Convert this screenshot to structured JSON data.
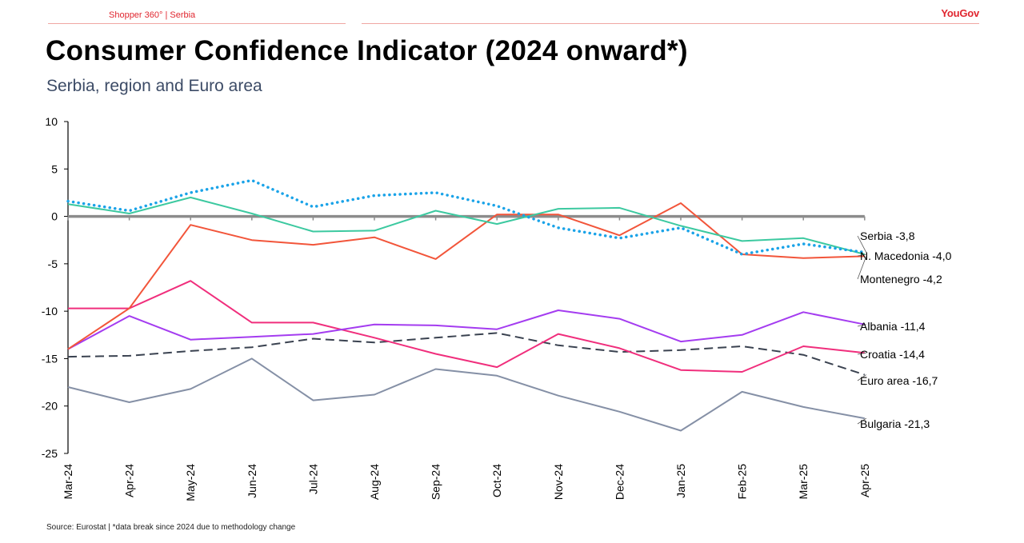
{
  "header": {
    "brand_label": "Shopper 360° | Serbia",
    "logo_text": "YouGov",
    "title": "Consumer Confidence Indicator (2024 onward*)",
    "subtitle": "Serbia, region and Euro area"
  },
  "footer": {
    "source": "Source: Eurostat | *data break since 2024 due to methodology change"
  },
  "colors": {
    "brand": "#e0262f",
    "zero_line": "#8c8c8c"
  },
  "chart_data": {
    "type": "line",
    "title": "Consumer Confidence Indicator (2024 onward*)",
    "subtitle": "Serbia, region and Euro area",
    "xlabel": "",
    "ylabel": "",
    "ylim": [
      -25,
      10
    ],
    "yticks": [
      10,
      5,
      0,
      -5,
      -10,
      -15,
      -20,
      -25
    ],
    "grid": false,
    "categories": [
      "Mar-24",
      "Apr-24",
      "May-24",
      "Jun-24",
      "Jul-24",
      "Aug-24",
      "Sep-24",
      "Oct-24",
      "Nov-24",
      "Dec-24",
      "Jan-25",
      "Feb-25",
      "Mar-25",
      "Apr-25"
    ],
    "series": [
      {
        "name": "Serbia",
        "end_label": "Serbia -3,8",
        "color": "#1aa3e8",
        "style": "dotted",
        "values": [
          1.6,
          0.6,
          2.5,
          3.8,
          1.0,
          2.2,
          2.5,
          1.1,
          -1.2,
          -2.3,
          -1.2,
          -4.0,
          -2.9,
          -3.8
        ]
      },
      {
        "name": "N. Macedonia",
        "end_label": "N. Macedonia -4,0",
        "color": "#3cc9a0",
        "style": "solid",
        "values": [
          1.3,
          0.3,
          2.0,
          0.3,
          -1.6,
          -1.5,
          0.6,
          -0.8,
          0.8,
          0.9,
          -1.0,
          -2.6,
          -2.3,
          -4.0
        ]
      },
      {
        "name": "Montenegro",
        "end_label": "Montenegro -4,2",
        "color": "#f2553a",
        "style": "solid",
        "values": [
          -14.0,
          -9.7,
          -0.9,
          -2.5,
          -3.0,
          -2.2,
          -4.5,
          0.2,
          0.2,
          -2.0,
          1.4,
          -4.0,
          -4.4,
          -4.2
        ]
      },
      {
        "name": "Albania",
        "end_label": "Albania -11,4",
        "color": "#a43cf0",
        "style": "solid",
        "values": [
          -14.0,
          -10.5,
          -13.0,
          -12.7,
          -12.4,
          -11.4,
          -11.5,
          -11.9,
          -9.9,
          -10.8,
          -13.2,
          -12.5,
          -10.1,
          -11.4
        ]
      },
      {
        "name": "Croatia",
        "end_label": "Croatia -14,4",
        "color": "#f02e7c",
        "style": "solid",
        "values": [
          -9.7,
          -9.7,
          -6.8,
          -11.2,
          -11.2,
          -12.8,
          -14.5,
          -15.9,
          -12.4,
          -13.9,
          -16.2,
          -16.4,
          -13.7,
          -14.4
        ]
      },
      {
        "name": "Euro area",
        "end_label": "Euro area -16,7",
        "color": "#3a4250",
        "style": "dashed",
        "values": [
          -14.8,
          -14.7,
          -14.2,
          -13.8,
          -12.9,
          -13.3,
          -12.8,
          -12.3,
          -13.6,
          -14.3,
          -14.1,
          -13.7,
          -14.6,
          -16.7
        ]
      },
      {
        "name": "Bulgaria",
        "end_label": "Bulgaria -21,3",
        "color": "#8590a6",
        "style": "solid",
        "values": [
          -18.0,
          -19.6,
          -18.2,
          -15.0,
          -19.4,
          -18.8,
          -16.1,
          -16.8,
          -18.9,
          -20.6,
          -22.6,
          -18.5,
          -20.1,
          -21.3
        ]
      }
    ]
  }
}
